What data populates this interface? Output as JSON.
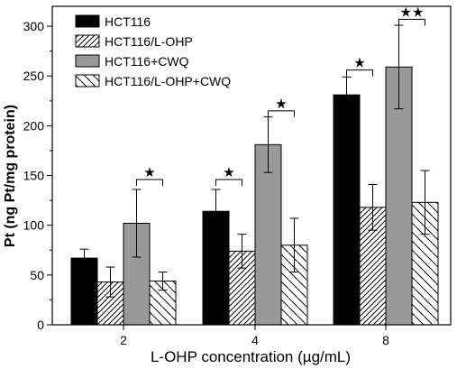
{
  "chart_data": {
    "type": "bar",
    "xlabel": "L-OHP concentration (µg/mL)",
    "ylabel": "Pt (ng Pt/mg protein)",
    "ylim": [
      0,
      320
    ],
    "yticks": [
      0,
      50,
      100,
      150,
      200,
      250,
      300
    ],
    "categories": [
      "2",
      "4",
      "8"
    ],
    "legend_position": "top-left",
    "series": [
      {
        "name": "HCT116",
        "values": [
          67,
          114,
          231
        ],
        "errors": [
          9,
          22,
          18
        ],
        "color": "#000000",
        "pattern": "solid"
      },
      {
        "name": "HCT116/L-OHP",
        "values": [
          43,
          74,
          118
        ],
        "errors": [
          15,
          17,
          23
        ],
        "color": "#ffffff",
        "pattern": "hatch-forward-dense"
      },
      {
        "name": "HCT116+CWQ",
        "values": [
          102,
          181,
          259
        ],
        "errors": [
          34,
          28,
          42
        ],
        "color": "#999999",
        "pattern": "solid"
      },
      {
        "name": "HCT116/L-OHP+CWQ",
        "values": [
          44,
          80,
          123
        ],
        "errors": [
          9,
          27,
          32
        ],
        "color": "#ffffff",
        "pattern": "hatch-back-sparse"
      }
    ],
    "significance": [
      {
        "category": "2",
        "between": [
          2,
          3
        ],
        "height": 146,
        "label": "★"
      },
      {
        "category": "4",
        "between": [
          0,
          1
        ],
        "height": 146,
        "label": "★"
      },
      {
        "category": "4",
        "between": [
          2,
          3
        ],
        "height": 215,
        "label": "★"
      },
      {
        "category": "8",
        "between": [
          0,
          1
        ],
        "height": 256,
        "label": "★"
      },
      {
        "category": "8",
        "between": [
          2,
          3
        ],
        "height": 307,
        "label": "★★"
      }
    ]
  }
}
